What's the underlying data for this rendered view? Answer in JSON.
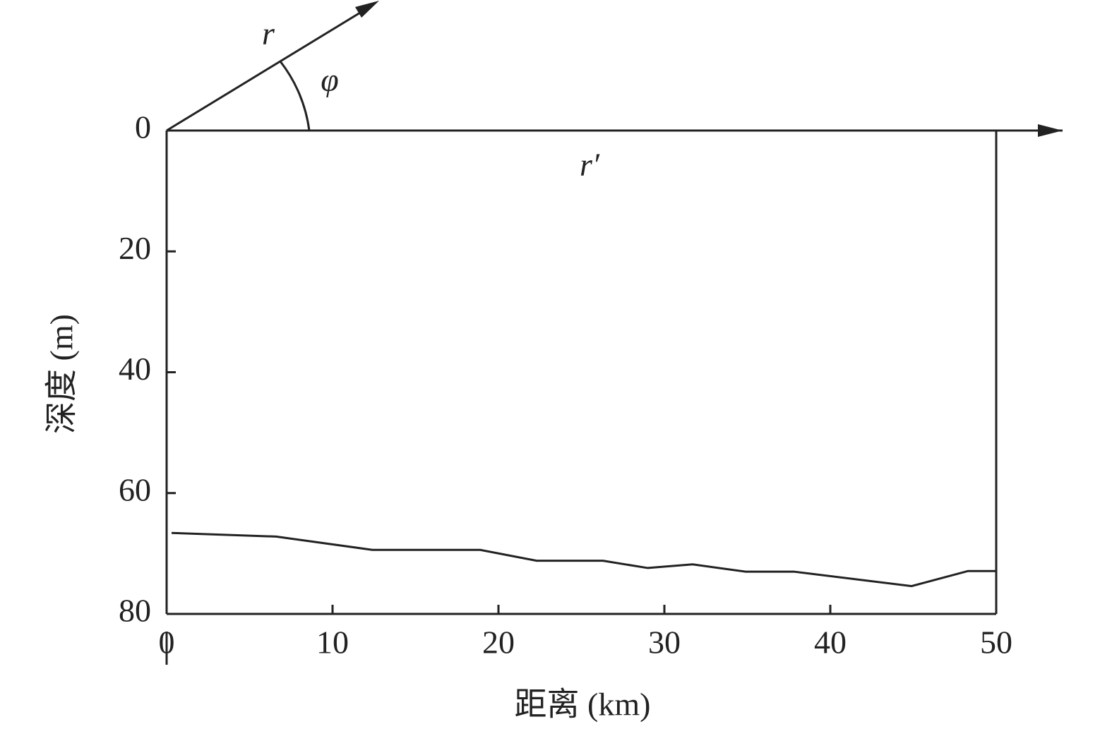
{
  "chart_data": {
    "type": "line",
    "x_label": "距离 (km)",
    "y_label": "深度 (m)",
    "annotations": [
      "r",
      "φ",
      "r′"
    ],
    "x": [
      0.3,
      6.6,
      12.4,
      18.9,
      22.3,
      26.3,
      29.0,
      31.7,
      34.9,
      37.8,
      44.9,
      48.3,
      50
    ],
    "values": [
      66.6,
      67.2,
      69.4,
      69.4,
      71.2,
      71.2,
      72.4,
      71.8,
      73.0,
      73.0,
      75.4,
      72.9,
      72.9
    ],
    "color": "#222222",
    "xlim": [
      0,
      50
    ],
    "xticks": [
      0,
      10,
      20,
      30,
      40,
      50
    ],
    "ylim": [
      0,
      80
    ],
    "yticks": [
      0,
      20,
      40,
      60,
      80
    ],
    "y_inverted": true
  }
}
